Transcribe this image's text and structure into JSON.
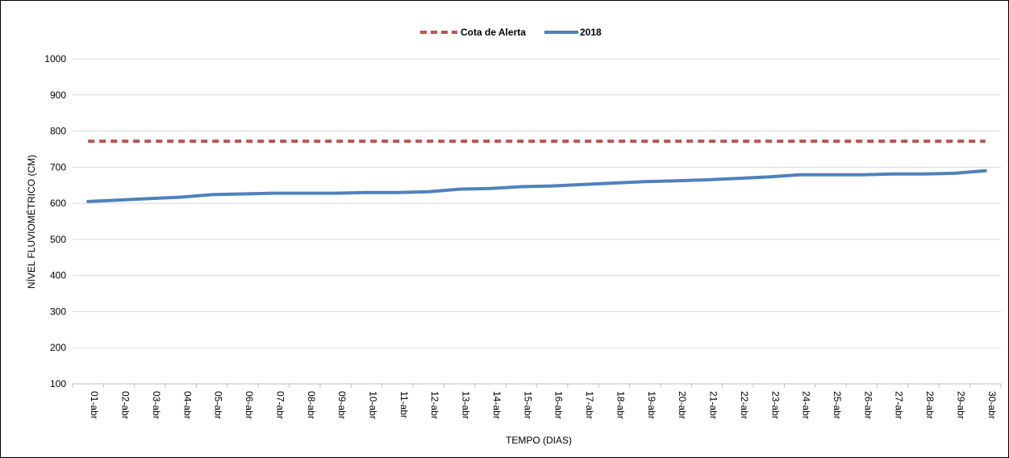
{
  "chart_data": {
    "type": "line",
    "title": "",
    "xlabel": "TEMPO (DIAS)",
    "ylabel": "NÍVEL FLUVIOMÉTRICO (CM)",
    "ylim": [
      100,
      1000
    ],
    "yticks": [
      100,
      200,
      300,
      400,
      500,
      600,
      700,
      800,
      900,
      1000
    ],
    "grid": true,
    "legend_position": "top-center",
    "categories": [
      "01-abr",
      "02-abr",
      "03-abr",
      "04-abr",
      "05-abr",
      "06-abr",
      "07-abr",
      "08-abr",
      "09-abr",
      "10-abr",
      "11-abr",
      "12-abr",
      "13-abr",
      "14-abr",
      "15-abr",
      "16-abr",
      "17-abr",
      "18-abr",
      "19-abr",
      "20-abr",
      "21-abr",
      "22-abr",
      "23-abr",
      "24-abr",
      "25-abr",
      "26-abr",
      "27-abr",
      "28-abr",
      "29-abr",
      "30-abr"
    ],
    "series": [
      {
        "name": "Cota de Alerta",
        "color": "#C0504D",
        "style": "dashed",
        "values": [
          772,
          772,
          772,
          772,
          772,
          772,
          772,
          772,
          772,
          772,
          772,
          772,
          772,
          772,
          772,
          772,
          772,
          772,
          772,
          772,
          772,
          772,
          772,
          772,
          772,
          772,
          772,
          772,
          772,
          772
        ]
      },
      {
        "name": "2018",
        "color": "#4F81BD",
        "style": "solid",
        "values": [
          605,
          609,
          613,
          617,
          624,
          626,
          628,
          628,
          628,
          630,
          630,
          632,
          639,
          641,
          646,
          648,
          652,
          656,
          660,
          662,
          665,
          669,
          673,
          679,
          679,
          679,
          681,
          681,
          683,
          690
        ]
      }
    ]
  }
}
